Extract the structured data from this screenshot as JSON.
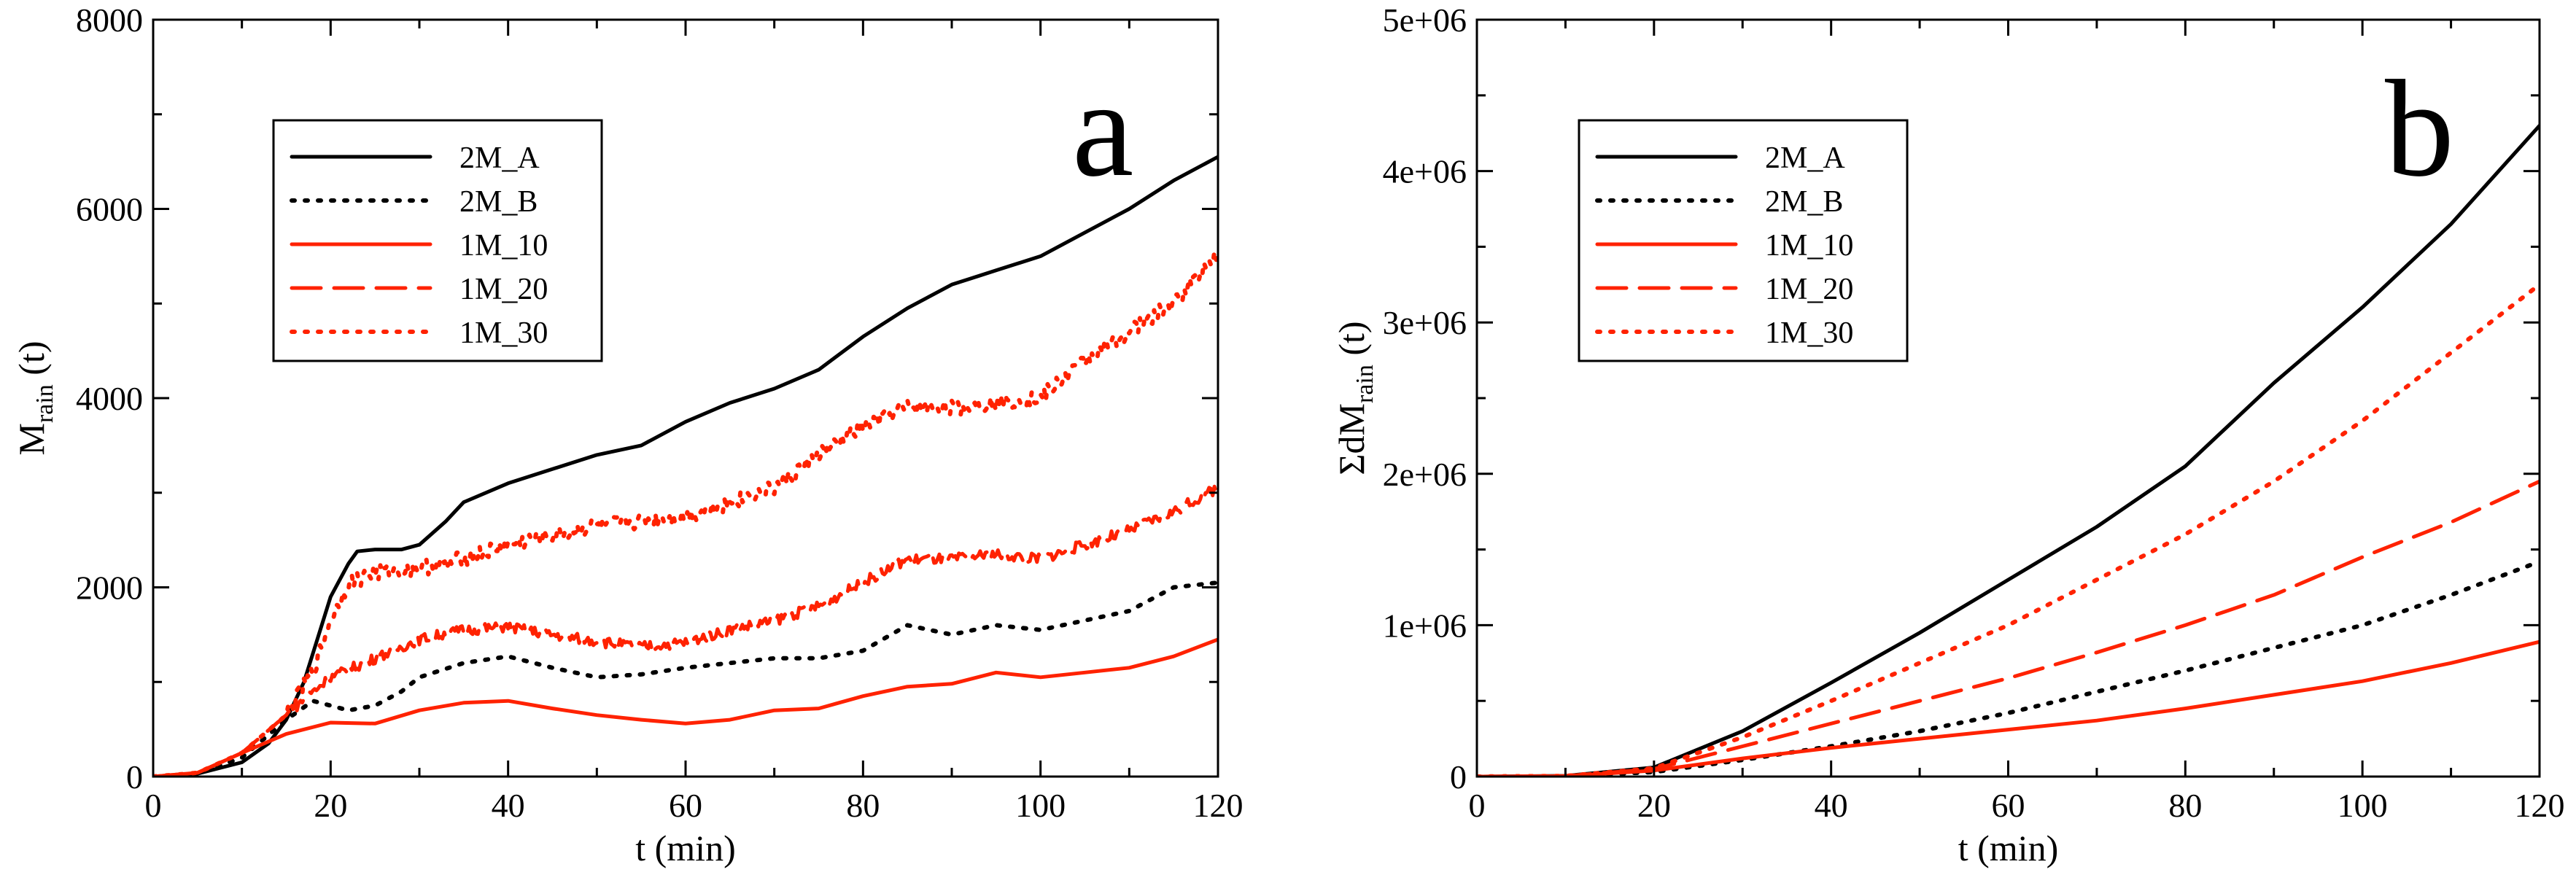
{
  "chart_data": [
    {
      "type": "line",
      "panel_label": "a",
      "xlabel": "t (min)",
      "ylabel_main": "M",
      "ylabel_sub": "rain",
      "ylabel_suffix": " (t)",
      "xlim": [
        0,
        120
      ],
      "ylim": [
        0,
        8000
      ],
      "xticks": [
        0,
        20,
        40,
        60,
        80,
        100,
        120
      ],
      "yticks": [
        0,
        2000,
        4000,
        6000,
        8000
      ],
      "xtick_labels": [
        "0",
        "20",
        "40",
        "60",
        "80",
        "100",
        "120"
      ],
      "ytick_labels": [
        "0",
        "2000",
        "4000",
        "6000",
        "8000"
      ],
      "legend_position": "top-left",
      "series": [
        {
          "name": "2M_A",
          "color": "#000000",
          "dash": "solid",
          "noise": 0,
          "x": [
            0,
            5,
            10,
            13,
            15,
            17,
            18,
            20,
            22,
            23,
            25,
            28,
            30,
            33,
            35,
            40,
            45,
            50,
            55,
            60,
            65,
            70,
            75,
            80,
            85,
            90,
            95,
            100,
            105,
            110,
            115,
            120
          ],
          "y": [
            0,
            30,
            150,
            350,
            600,
            1000,
            1300,
            1900,
            2250,
            2380,
            2400,
            2400,
            2450,
            2700,
            2900,
            3100,
            3250,
            3400,
            3500,
            3750,
            3950,
            4100,
            4300,
            4650,
            4950,
            5200,
            5350,
            5500,
            5750,
            6000,
            6300,
            6550
          ]
        },
        {
          "name": "2M_B",
          "color": "#000000",
          "dash": "dotted",
          "noise": 0,
          "x": [
            0,
            5,
            10,
            15,
            18,
            20,
            22,
            25,
            28,
            30,
            35,
            40,
            45,
            50,
            55,
            60,
            65,
            70,
            75,
            80,
            85,
            90,
            95,
            100,
            105,
            110,
            115,
            120
          ],
          "y": [
            0,
            30,
            200,
            600,
            800,
            750,
            700,
            750,
            900,
            1050,
            1200,
            1270,
            1150,
            1050,
            1080,
            1150,
            1200,
            1250,
            1250,
            1330,
            1600,
            1500,
            1600,
            1550,
            1650,
            1750,
            2000,
            2050
          ]
        },
        {
          "name": "1M_10",
          "color": "#ff2200",
          "dash": "solid",
          "noise": 0,
          "x": [
            0,
            5,
            10,
            15,
            20,
            25,
            30,
            35,
            40,
            45,
            50,
            55,
            60,
            65,
            70,
            75,
            80,
            85,
            90,
            95,
            100,
            105,
            110,
            115,
            120
          ],
          "y": [
            0,
            40,
            250,
            450,
            570,
            560,
            700,
            780,
            800,
            720,
            650,
            600,
            560,
            600,
            700,
            720,
            850,
            950,
            980,
            1100,
            1050,
            1100,
            1150,
            1270,
            1450
          ]
        },
        {
          "name": "1M_20",
          "color": "#ff2200",
          "dash": "long-dash",
          "noise": 110,
          "x": [
            0,
            5,
            10,
            15,
            18,
            20,
            25,
            30,
            35,
            40,
            45,
            50,
            55,
            60,
            65,
            70,
            75,
            80,
            85,
            90,
            95,
            100,
            105,
            110,
            115,
            120
          ],
          "y": [
            0,
            40,
            250,
            650,
            900,
            1050,
            1250,
            1450,
            1550,
            1580,
            1500,
            1430,
            1370,
            1420,
            1550,
            1650,
            1800,
            2050,
            2300,
            2300,
            2350,
            2300,
            2450,
            2600,
            2800,
            3050
          ]
        },
        {
          "name": "1M_30",
          "color": "#ff2200",
          "dash": "dotted",
          "noise": 170,
          "x": [
            0,
            5,
            10,
            15,
            18,
            20,
            22,
            25,
            30,
            35,
            40,
            45,
            50,
            55,
            60,
            65,
            70,
            75,
            80,
            85,
            90,
            95,
            100,
            105,
            110,
            115,
            120
          ],
          "y": [
            0,
            40,
            250,
            650,
            1100,
            1650,
            2050,
            2150,
            2200,
            2300,
            2450,
            2550,
            2650,
            2700,
            2750,
            2900,
            3050,
            3400,
            3700,
            3900,
            3900,
            3950,
            4000,
            4400,
            4700,
            5000,
            5550
          ]
        }
      ]
    },
    {
      "type": "line",
      "panel_label": "b",
      "xlabel": "t (min)",
      "ylabel_main": "ΣdM",
      "ylabel_sub": "rain",
      "ylabel_suffix": " (t)",
      "xlim": [
        0,
        120
      ],
      "ylim": [
        0,
        5000000
      ],
      "xticks": [
        0,
        20,
        40,
        60,
        80,
        100,
        120
      ],
      "yticks": [
        0,
        1000000,
        2000000,
        3000000,
        4000000,
        5000000
      ],
      "xtick_labels": [
        "0",
        "20",
        "40",
        "60",
        "80",
        "100",
        "120"
      ],
      "ytick_labels": [
        "0",
        "1e+06",
        "2e+06",
        "3e+06",
        "4e+06",
        "5e+06"
      ],
      "legend_position": "top-left",
      "series": [
        {
          "name": "2M_A",
          "color": "#000000",
          "dash": "solid",
          "noise": 0,
          "x": [
            0,
            10,
            20,
            30,
            40,
            50,
            60,
            70,
            80,
            90,
            100,
            110,
            120
          ],
          "y": [
            0,
            5000,
            60000,
            300000,
            620000,
            950000,
            1300000,
            1650000,
            2050000,
            2600000,
            3100000,
            3650000,
            4300000
          ]
        },
        {
          "name": "2M_B",
          "color": "#000000",
          "dash": "dotted",
          "noise": 0,
          "x": [
            0,
            10,
            20,
            30,
            40,
            50,
            60,
            70,
            80,
            90,
            100,
            110,
            120
          ],
          "y": [
            0,
            3000,
            30000,
            110000,
            200000,
            300000,
            420000,
            560000,
            700000,
            850000,
            1000000,
            1200000,
            1420000
          ]
        },
        {
          "name": "1M_10",
          "color": "#ff2200",
          "dash": "solid",
          "noise": 0,
          "x": [
            0,
            10,
            20,
            30,
            40,
            50,
            60,
            70,
            80,
            90,
            100,
            110,
            120
          ],
          "y": [
            0,
            3000,
            40000,
            120000,
            190000,
            250000,
            310000,
            370000,
            450000,
            540000,
            630000,
            750000,
            890000
          ]
        },
        {
          "name": "1M_20",
          "color": "#ff2200",
          "dash": "long-dash",
          "noise": 0,
          "x": [
            0,
            10,
            20,
            30,
            40,
            50,
            60,
            70,
            80,
            90,
            100,
            110,
            120
          ],
          "y": [
            0,
            4000,
            50000,
            200000,
            350000,
            500000,
            650000,
            820000,
            1000000,
            1200000,
            1450000,
            1680000,
            1950000
          ]
        },
        {
          "name": "1M_30",
          "color": "#ff2200",
          "dash": "dotted",
          "noise": 0,
          "x": [
            0,
            10,
            20,
            30,
            40,
            50,
            60,
            70,
            80,
            90,
            100,
            110,
            120
          ],
          "y": [
            0,
            4000,
            55000,
            260000,
            500000,
            750000,
            1000000,
            1300000,
            1600000,
            1950000,
            2350000,
            2800000,
            3250000
          ]
        }
      ]
    }
  ]
}
